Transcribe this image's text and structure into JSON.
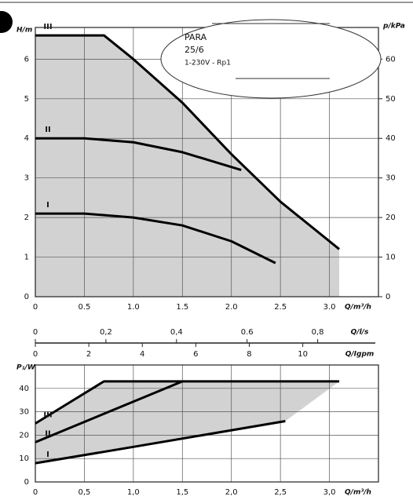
{
  "chart_data": [
    {
      "type": "line",
      "annotations": [
        "PARA",
        "25/6",
        "1-230V - Rp1"
      ],
      "ylabel": "H/m",
      "y2label": "p/kPa",
      "xlabel": "Q/m³/h",
      "xlim": [
        0,
        3.5
      ],
      "ylim": [
        0,
        6.8
      ],
      "y2lim": [
        0,
        68
      ],
      "xticks": [
        0,
        {
          "value": 0.5,
          "label": "0.5"
        },
        {
          "value": 1,
          "label": "1.0"
        },
        {
          "value": 1.5,
          "label": "1.5"
        },
        {
          "value": 2,
          "label": "2.0"
        },
        {
          "value": 2.5,
          "label": "2.5"
        },
        {
          "value": 3,
          "label": "3.0"
        }
      ],
      "yticks": [
        0,
        1,
        2,
        3,
        4,
        5,
        6
      ],
      "y2ticks": [
        0,
        10,
        20,
        30,
        40,
        50,
        60
      ],
      "grid": true,
      "shade": "#d2d2d2",
      "shade_to": "axis",
      "series": [
        {
          "name": "III",
          "color": "#000000",
          "x": [
            0,
            0.7,
            1.0,
            1.5,
            2.0,
            2.5,
            3.1
          ],
          "values": [
            6.6,
            6.6,
            6.0,
            4.9,
            3.6,
            2.4,
            1.2
          ]
        },
        {
          "name": "II",
          "color": "#000000",
          "x": [
            0,
            0.5,
            1.0,
            1.5,
            2.1
          ],
          "values": [
            4.0,
            4.0,
            3.9,
            3.65,
            3.2
          ]
        },
        {
          "name": "I",
          "color": "#000000",
          "x": [
            0,
            0.5,
            1.0,
            1.5,
            2.0,
            2.45
          ],
          "values": [
            2.1,
            2.1,
            2.0,
            1.8,
            1.4,
            0.85
          ]
        }
      ],
      "extra_x_axes": [
        {
          "label": "Q/l/s",
          "xlim": [
            0,
            0.9722
          ],
          "xticks": [
            0,
            {
              "value": 0.2,
              "label": "0,2"
            },
            {
              "value": 0.4,
              "label": "0,4"
            },
            {
              "value": 0.6,
              "label": "0.6"
            },
            {
              "value": 0.8,
              "label": "0,8"
            }
          ]
        },
        {
          "label": "Q/Igpm",
          "xlim": [
            0,
            12.83
          ],
          "xticks": [
            0,
            2,
            4,
            6,
            8,
            10
          ]
        }
      ]
    },
    {
      "type": "line",
      "ylabel": "P₁/W",
      "xlabel": "Q/m³/h",
      "xlim": [
        0,
        3.5
      ],
      "ylim": [
        0,
        50
      ],
      "xticks": [
        0,
        {
          "value": 0.5,
          "label": "0,5"
        },
        {
          "value": 1,
          "label": "1,0"
        },
        {
          "value": 1.5,
          "label": "1,5"
        },
        {
          "value": 2,
          "label": "2,0"
        },
        {
          "value": 2.5,
          "label": "2,5"
        },
        {
          "value": 3,
          "label": "3,0"
        }
      ],
      "yticks": [
        0,
        10,
        20,
        30,
        40
      ],
      "grid": true,
      "shade": "#d2d2d2",
      "shade_to": "last_series",
      "series": [
        {
          "name": "III",
          "color": "#000000",
          "x": [
            0,
            0.7,
            3.1
          ],
          "values": [
            25,
            43,
            43
          ]
        },
        {
          "name": "II",
          "color": "#000000",
          "x": [
            0,
            1.5
          ],
          "values": [
            17,
            43
          ]
        },
        {
          "name": "I",
          "color": "#000000",
          "x": [
            0,
            1.0,
            2.55
          ],
          "values": [
            8,
            15,
            26
          ]
        }
      ]
    }
  ]
}
